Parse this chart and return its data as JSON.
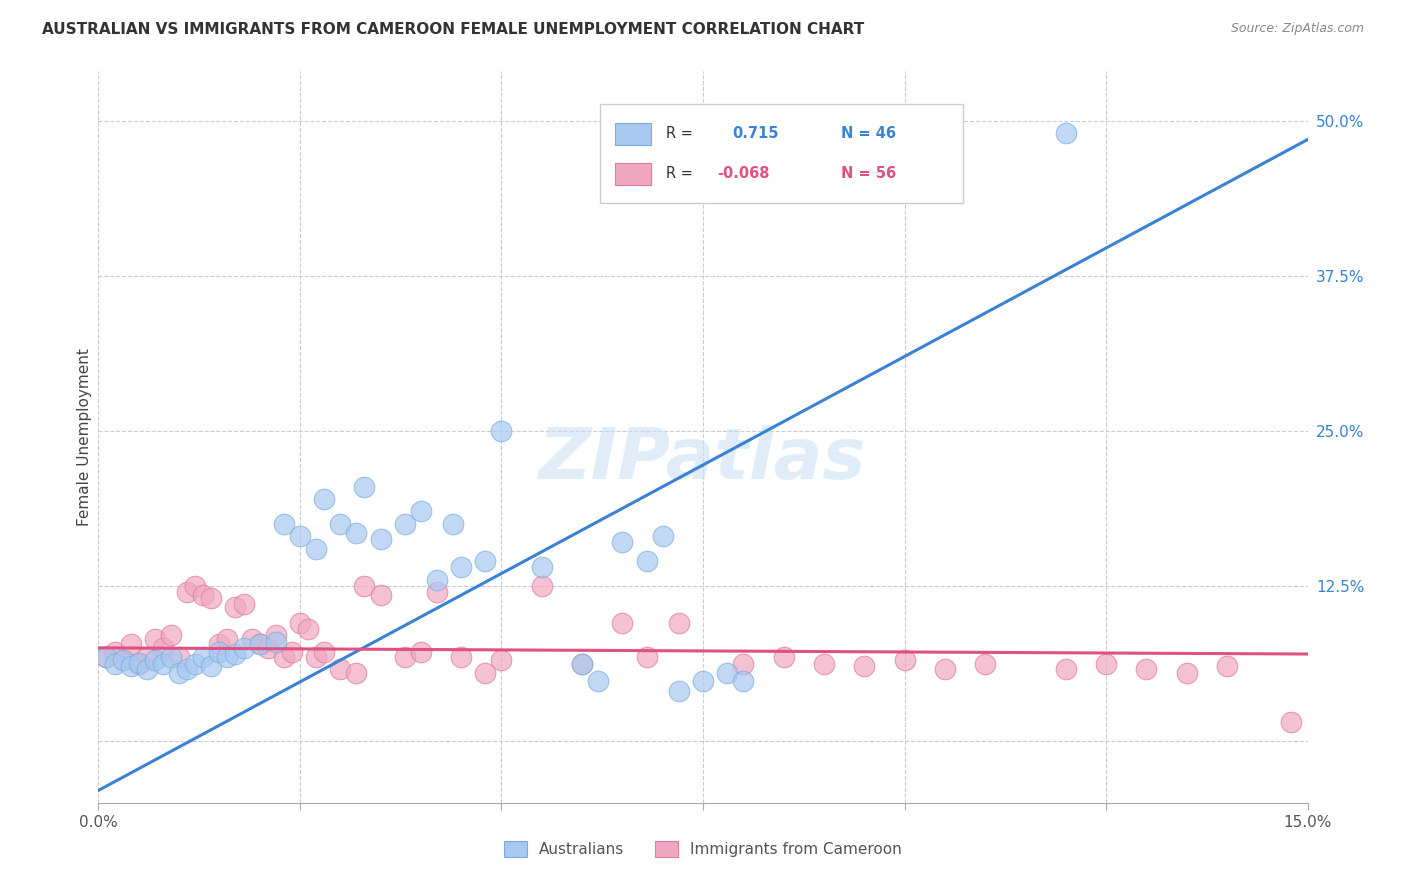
{
  "title": "AUSTRALIAN VS IMMIGRANTS FROM CAMEROON FEMALE UNEMPLOYMENT CORRELATION CHART",
  "source": "Source: ZipAtlas.com",
  "ylabel": "Female Unemployment",
  "legend_R1": "0.715",
  "legend_N1": "N = 46",
  "legend_R2": "-0.068",
  "legend_N2": "N = 56",
  "blue_color": "#a8c8f0",
  "pink_color": "#f0a8c0",
  "blue_edge_color": "#7aaee0",
  "pink_edge_color": "#e07aa0",
  "blue_line_color": "#3a82d4",
  "pink_line_color": "#e05080",
  "watermark": "ZIPatlas",
  "xmin": 0.0,
  "xmax": 0.15,
  "ymin": -0.05,
  "ymax": 0.54,
  "blue_trend_x0": 0.0,
  "blue_trend_y0": -0.04,
  "blue_trend_x1": 0.15,
  "blue_trend_y1": 0.485,
  "pink_trend_x0": 0.0,
  "pink_trend_y0": 0.075,
  "pink_trend_x1": 0.15,
  "pink_trend_y1": 0.07,
  "australians_x": [
    0.001,
    0.002,
    0.003,
    0.004,
    0.005,
    0.006,
    0.007,
    0.008,
    0.009,
    0.01,
    0.011,
    0.012,
    0.013,
    0.014,
    0.015,
    0.016,
    0.017,
    0.018,
    0.02,
    0.022,
    0.023,
    0.025,
    0.027,
    0.028,
    0.03,
    0.032,
    0.033,
    0.035,
    0.038,
    0.04,
    0.042,
    0.044,
    0.045,
    0.048,
    0.05,
    0.055,
    0.06,
    0.062,
    0.065,
    0.068,
    0.07,
    0.072,
    0.075,
    0.078,
    0.08,
    0.12
  ],
  "australians_y": [
    0.068,
    0.062,
    0.065,
    0.06,
    0.063,
    0.058,
    0.065,
    0.062,
    0.068,
    0.055,
    0.058,
    0.062,
    0.068,
    0.06,
    0.072,
    0.068,
    0.07,
    0.075,
    0.078,
    0.08,
    0.175,
    0.165,
    0.155,
    0.195,
    0.175,
    0.168,
    0.205,
    0.163,
    0.175,
    0.185,
    0.13,
    0.175,
    0.14,
    0.145,
    0.25,
    0.14,
    0.062,
    0.048,
    0.16,
    0.145,
    0.165,
    0.04,
    0.048,
    0.055,
    0.048,
    0.49
  ],
  "cameroon_x": [
    0.001,
    0.002,
    0.003,
    0.004,
    0.005,
    0.006,
    0.007,
    0.008,
    0.009,
    0.01,
    0.011,
    0.012,
    0.013,
    0.014,
    0.015,
    0.016,
    0.017,
    0.018,
    0.019,
    0.02,
    0.021,
    0.022,
    0.023,
    0.024,
    0.025,
    0.026,
    0.027,
    0.028,
    0.03,
    0.032,
    0.033,
    0.035,
    0.038,
    0.04,
    0.042,
    0.045,
    0.048,
    0.05,
    0.055,
    0.06,
    0.065,
    0.068,
    0.072,
    0.08,
    0.085,
    0.09,
    0.095,
    0.1,
    0.105,
    0.11,
    0.12,
    0.125,
    0.13,
    0.135,
    0.14,
    0.148
  ],
  "cameroon_y": [
    0.068,
    0.072,
    0.065,
    0.078,
    0.062,
    0.068,
    0.082,
    0.075,
    0.085,
    0.068,
    0.12,
    0.125,
    0.118,
    0.115,
    0.078,
    0.082,
    0.108,
    0.11,
    0.082,
    0.078,
    0.075,
    0.085,
    0.068,
    0.072,
    0.095,
    0.09,
    0.068,
    0.072,
    0.058,
    0.055,
    0.125,
    0.118,
    0.068,
    0.072,
    0.12,
    0.068,
    0.055,
    0.065,
    0.125,
    0.062,
    0.095,
    0.068,
    0.095,
    0.062,
    0.068,
    0.062,
    0.06,
    0.065,
    0.058,
    0.062,
    0.058,
    0.062,
    0.058,
    0.055,
    0.06,
    0.015
  ]
}
